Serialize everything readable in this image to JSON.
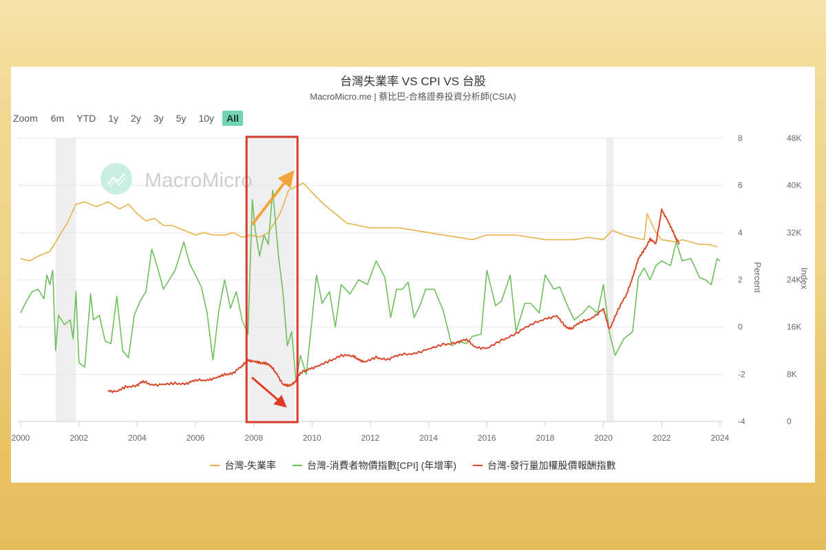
{
  "chart": {
    "title": "台灣失業率 VS CPI VS 台股",
    "subtitle": "MacroMicro.me | 蔡比巴-合格證券投資分析師(CSIA)",
    "watermark": "MacroMicro"
  },
  "zoom": {
    "label": "Zoom",
    "buttons": [
      {
        "label": "6m",
        "active": false
      },
      {
        "label": "YTD",
        "active": false
      },
      {
        "label": "1y",
        "active": false
      },
      {
        "label": "2y",
        "active": false
      },
      {
        "label": "3y",
        "active": false
      },
      {
        "label": "5y",
        "active": false
      },
      {
        "label": "10y",
        "active": false
      },
      {
        "label": "All",
        "active": true
      }
    ]
  },
  "legend": [
    {
      "label": "台灣-失業率",
      "color": "#e8b24a"
    },
    {
      "label": "台灣-消費者物價指數[CPI] (年增率)",
      "color": "#6cbf5c"
    },
    {
      "label": "台灣-發行量加權股價報酬指數",
      "color": "#d9482b"
    }
  ],
  "colors": {
    "unemployment": "#e8b24a",
    "cpi": "#6cbf5c",
    "stock": "#d9482b",
    "highlight_box": "#d63a2a",
    "arrow_up": "#f0a53a",
    "arrow_down": "#e03a24",
    "recession_band": "#efefef",
    "watermark_circle": "#c9efe3",
    "zoom_active": "#6fd4b4"
  },
  "chart_data": {
    "type": "line",
    "title": "台灣失業率 VS CPI VS 台股",
    "subtitle": "MacroMicro.me | 蔡比巴-合格證券投資分析師(CSIA)",
    "xlabel": "",
    "x_ticks": [
      "2000",
      "2002",
      "2004",
      "2006",
      "2008",
      "2010",
      "2012",
      "2014",
      "2016",
      "2018",
      "2020",
      "2022",
      "2024"
    ],
    "x_range": [
      2000,
      2024
    ],
    "y_left": {
      "label": "Percent",
      "ticks": [
        "8",
        "6",
        "4",
        "2",
        "0",
        "-2",
        "-4"
      ],
      "range": [
        -4,
        8
      ]
    },
    "y_right": {
      "label": "Index",
      "ticks": [
        "48K",
        "40K",
        "32K",
        "24K",
        "16K",
        "8K",
        "0"
      ],
      "range": [
        0,
        48000
      ]
    },
    "grid": true,
    "legend_position": "bottom",
    "recession_bands": [
      [
        2001.2,
        2001.9
      ],
      [
        2007.8,
        2009.4
      ],
      [
        2020.1,
        2020.35
      ]
    ],
    "annotations": [
      {
        "type": "rectangle",
        "x": [
          2007.8,
          2009.5
        ],
        "note": "highlight 2008 financial crisis"
      },
      {
        "type": "arrow",
        "direction": "up",
        "color": "orange",
        "from": [
          2007.9,
          4.4
        ],
        "to": [
          2009.4,
          6.7
        ]
      },
      {
        "type": "arrow",
        "direction": "down",
        "color": "red",
        "from": [
          2007.9,
          -2.1
        ],
        "to": [
          2009.2,
          -3.6
        ]
      }
    ],
    "series": [
      {
        "name": "台灣-失業率",
        "axis": "left",
        "points": [
          [
            2000,
            2.9
          ],
          [
            2000.3,
            2.8
          ],
          [
            2000.6,
            3.0
          ],
          [
            2001.0,
            3.2
          ],
          [
            2001.3,
            3.8
          ],
          [
            2001.6,
            4.4
          ],
          [
            2001.9,
            5.2
          ],
          [
            2002.2,
            5.3
          ],
          [
            2002.6,
            5.1
          ],
          [
            2003.0,
            5.3
          ],
          [
            2003.4,
            5.0
          ],
          [
            2003.7,
            5.2
          ],
          [
            2004.0,
            4.8
          ],
          [
            2004.3,
            4.5
          ],
          [
            2004.6,
            4.6
          ],
          [
            2004.9,
            4.3
          ],
          [
            2005.2,
            4.3
          ],
          [
            2005.6,
            4.1
          ],
          [
            2006.0,
            3.9
          ],
          [
            2006.3,
            4.0
          ],
          [
            2006.6,
            3.9
          ],
          [
            2007.0,
            3.9
          ],
          [
            2007.3,
            4.0
          ],
          [
            2007.6,
            3.8
          ],
          [
            2007.9,
            3.9
          ],
          [
            2008.2,
            3.8
          ],
          [
            2008.5,
            4.0
          ],
          [
            2008.9,
            4.8
          ],
          [
            2009.2,
            5.8
          ],
          [
            2009.7,
            6.1
          ],
          [
            2010.0,
            5.7
          ],
          [
            2010.4,
            5.2
          ],
          [
            2010.8,
            4.8
          ],
          [
            2011.2,
            4.4
          ],
          [
            2011.6,
            4.3
          ],
          [
            2012.0,
            4.2
          ],
          [
            2012.5,
            4.2
          ],
          [
            2013.0,
            4.2
          ],
          [
            2013.5,
            4.1
          ],
          [
            2014.0,
            4.0
          ],
          [
            2014.5,
            3.9
          ],
          [
            2015.0,
            3.8
          ],
          [
            2015.5,
            3.7
          ],
          [
            2016.0,
            3.9
          ],
          [
            2016.5,
            3.9
          ],
          [
            2017.0,
            3.9
          ],
          [
            2017.5,
            3.8
          ],
          [
            2018.0,
            3.7
          ],
          [
            2018.5,
            3.7
          ],
          [
            2019.0,
            3.7
          ],
          [
            2019.5,
            3.8
          ],
          [
            2020.0,
            3.7
          ],
          [
            2020.3,
            4.1
          ],
          [
            2020.7,
            3.9
          ],
          [
            2021.0,
            3.8
          ],
          [
            2021.4,
            3.7
          ],
          [
            2021.5,
            4.8
          ],
          [
            2021.8,
            4.0
          ],
          [
            2022.0,
            3.7
          ],
          [
            2022.5,
            3.6
          ],
          [
            2022.7,
            3.7
          ],
          [
            2023.0,
            3.6
          ],
          [
            2023.3,
            3.5
          ],
          [
            2023.6,
            3.5
          ],
          [
            2023.9,
            3.4
          ]
        ]
      },
      {
        "name": "台灣-消費者物價指數[CPI] (年增率)",
        "axis": "left",
        "points": [
          [
            2000,
            0.6
          ],
          [
            2000.2,
            1.1
          ],
          [
            2000.4,
            1.5
          ],
          [
            2000.6,
            1.6
          ],
          [
            2000.8,
            1.2
          ],
          [
            2000.9,
            2.2
          ],
          [
            2001.0,
            1.8
          ],
          [
            2001.1,
            2.4
          ],
          [
            2001.2,
            -1.0
          ],
          [
            2001.3,
            0.5
          ],
          [
            2001.5,
            0.1
          ],
          [
            2001.7,
            0.3
          ],
          [
            2001.8,
            -0.5
          ],
          [
            2001.9,
            1.5
          ],
          [
            2002.0,
            -1.5
          ],
          [
            2002.2,
            -1.7
          ],
          [
            2002.4,
            1.4
          ],
          [
            2002.5,
            0.3
          ],
          [
            2002.7,
            0.5
          ],
          [
            2002.9,
            -0.6
          ],
          [
            2003.1,
            -0.7
          ],
          [
            2003.3,
            1.3
          ],
          [
            2003.5,
            -1.0
          ],
          [
            2003.7,
            -1.3
          ],
          [
            2003.9,
            0.5
          ],
          [
            2004.1,
            1.1
          ],
          [
            2004.3,
            1.5
          ],
          [
            2004.5,
            3.3
          ],
          [
            2004.7,
            2.5
          ],
          [
            2004.9,
            1.6
          ],
          [
            2005.1,
            2.0
          ],
          [
            2005.3,
            2.4
          ],
          [
            2005.6,
            3.6
          ],
          [
            2005.8,
            2.7
          ],
          [
            2006.0,
            2.2
          ],
          [
            2006.2,
            1.7
          ],
          [
            2006.4,
            0.6
          ],
          [
            2006.6,
            -1.4
          ],
          [
            2006.8,
            0.7
          ],
          [
            2007.0,
            2.0
          ],
          [
            2007.2,
            0.8
          ],
          [
            2007.4,
            1.5
          ],
          [
            2007.6,
            0.3
          ],
          [
            2007.8,
            -0.3
          ],
          [
            2007.95,
            5.4
          ],
          [
            2008.05,
            4.1
          ],
          [
            2008.2,
            3.0
          ],
          [
            2008.35,
            3.9
          ],
          [
            2008.5,
            3.5
          ],
          [
            2008.65,
            5.8
          ],
          [
            2008.85,
            3.0
          ],
          [
            2009.0,
            1.5
          ],
          [
            2009.15,
            -0.8
          ],
          [
            2009.3,
            -0.2
          ],
          [
            2009.45,
            -2.3
          ],
          [
            2009.6,
            -1.2
          ],
          [
            2009.8,
            -2.0
          ],
          [
            2010.0,
            0.3
          ],
          [
            2010.15,
            2.2
          ],
          [
            2010.35,
            1.0
          ],
          [
            2010.6,
            1.5
          ],
          [
            2010.8,
            0.0
          ],
          [
            2011.0,
            1.8
          ],
          [
            2011.3,
            1.4
          ],
          [
            2011.6,
            2.0
          ],
          [
            2011.9,
            1.8
          ],
          [
            2012.2,
            2.8
          ],
          [
            2012.5,
            2.1
          ],
          [
            2012.7,
            0.4
          ],
          [
            2012.9,
            1.6
          ],
          [
            2013.1,
            1.6
          ],
          [
            2013.3,
            1.9
          ],
          [
            2013.5,
            0.4
          ],
          [
            2013.7,
            0.9
          ],
          [
            2013.9,
            1.6
          ],
          [
            2014.2,
            1.6
          ],
          [
            2014.5,
            0.7
          ],
          [
            2014.8,
            -0.8
          ],
          [
            2015.0,
            -0.6
          ],
          [
            2015.3,
            -0.7
          ],
          [
            2015.5,
            -0.4
          ],
          [
            2015.8,
            -0.3
          ],
          [
            2016.0,
            2.4
          ],
          [
            2016.3,
            0.9
          ],
          [
            2016.5,
            1.1
          ],
          [
            2016.8,
            2.2
          ],
          [
            2017.0,
            -0.2
          ],
          [
            2017.3,
            1.0
          ],
          [
            2017.5,
            1.0
          ],
          [
            2017.8,
            0.6
          ],
          [
            2018.0,
            2.2
          ],
          [
            2018.3,
            1.6
          ],
          [
            2018.5,
            1.7
          ],
          [
            2018.8,
            0.8
          ],
          [
            2019.0,
            0.3
          ],
          [
            2019.3,
            0.6
          ],
          [
            2019.5,
            0.9
          ],
          [
            2019.8,
            0.6
          ],
          [
            2020.0,
            1.8
          ],
          [
            2020.2,
            -0.2
          ],
          [
            2020.4,
            -1.2
          ],
          [
            2020.7,
            -0.5
          ],
          [
            2021.0,
            -0.2
          ],
          [
            2021.2,
            2.1
          ],
          [
            2021.4,
            2.5
          ],
          [
            2021.6,
            2.0
          ],
          [
            2021.8,
            2.6
          ],
          [
            2022.0,
            2.8
          ],
          [
            2022.3,
            2.6
          ],
          [
            2022.5,
            3.6
          ],
          [
            2022.7,
            2.8
          ],
          [
            2023.0,
            2.9
          ],
          [
            2023.3,
            2.1
          ],
          [
            2023.5,
            2.0
          ],
          [
            2023.7,
            1.8
          ],
          [
            2023.9,
            2.9
          ],
          [
            2024.0,
            2.8
          ]
        ]
      },
      {
        "name": "台灣-發行量加權股價報酬指數",
        "axis": "right",
        "points": [
          [
            2003.0,
            5300
          ],
          [
            2003.3,
            5000
          ],
          [
            2003.6,
            5800
          ],
          [
            2004.0,
            6200
          ],
          [
            2004.2,
            6700
          ],
          [
            2004.5,
            6300
          ],
          [
            2004.9,
            6200
          ],
          [
            2005.3,
            6400
          ],
          [
            2005.7,
            6500
          ],
          [
            2006.0,
            6900
          ],
          [
            2006.4,
            7100
          ],
          [
            2006.7,
            7300
          ],
          [
            2007.0,
            7900
          ],
          [
            2007.3,
            8300
          ],
          [
            2007.6,
            9300
          ],
          [
            2007.8,
            10500
          ],
          [
            2008.0,
            10100
          ],
          [
            2008.2,
            9900
          ],
          [
            2008.4,
            10000
          ],
          [
            2008.6,
            9200
          ],
          [
            2008.8,
            8100
          ],
          [
            2009.0,
            6200
          ],
          [
            2009.2,
            6000
          ],
          [
            2009.4,
            6700
          ],
          [
            2009.6,
            8100
          ],
          [
            2009.9,
            9000
          ],
          [
            2010.2,
            9300
          ],
          [
            2010.6,
            10200
          ],
          [
            2011.0,
            11300
          ],
          [
            2011.4,
            11000
          ],
          [
            2011.6,
            10600
          ],
          [
            2011.8,
            10000
          ],
          [
            2012.2,
            10800
          ],
          [
            2012.6,
            10600
          ],
          [
            2013.0,
            11200
          ],
          [
            2013.5,
            11600
          ],
          [
            2014.0,
            12200
          ],
          [
            2014.5,
            13000
          ],
          [
            2015.0,
            13500
          ],
          [
            2015.3,
            13800
          ],
          [
            2015.6,
            12700
          ],
          [
            2016.0,
            12300
          ],
          [
            2016.5,
            13700
          ],
          [
            2017.0,
            15000
          ],
          [
            2017.5,
            16300
          ],
          [
            2018.0,
            17500
          ],
          [
            2018.4,
            17800
          ],
          [
            2018.7,
            16000
          ],
          [
            2018.9,
            15800
          ],
          [
            2019.2,
            16700
          ],
          [
            2019.6,
            17600
          ],
          [
            2020.0,
            19000
          ],
          [
            2020.2,
            15500
          ],
          [
            2020.5,
            19000
          ],
          [
            2020.8,
            21500
          ],
          [
            2021.0,
            24500
          ],
          [
            2021.2,
            27500
          ],
          [
            2021.4,
            29000
          ],
          [
            2021.6,
            31000
          ],
          [
            2021.8,
            30000
          ],
          [
            2022.0,
            36000
          ],
          [
            2022.2,
            34000
          ],
          [
            2022.4,
            32000
          ],
          [
            2022.5,
            31000
          ],
          [
            2022.6,
            30000
          ]
        ]
      }
    ]
  }
}
